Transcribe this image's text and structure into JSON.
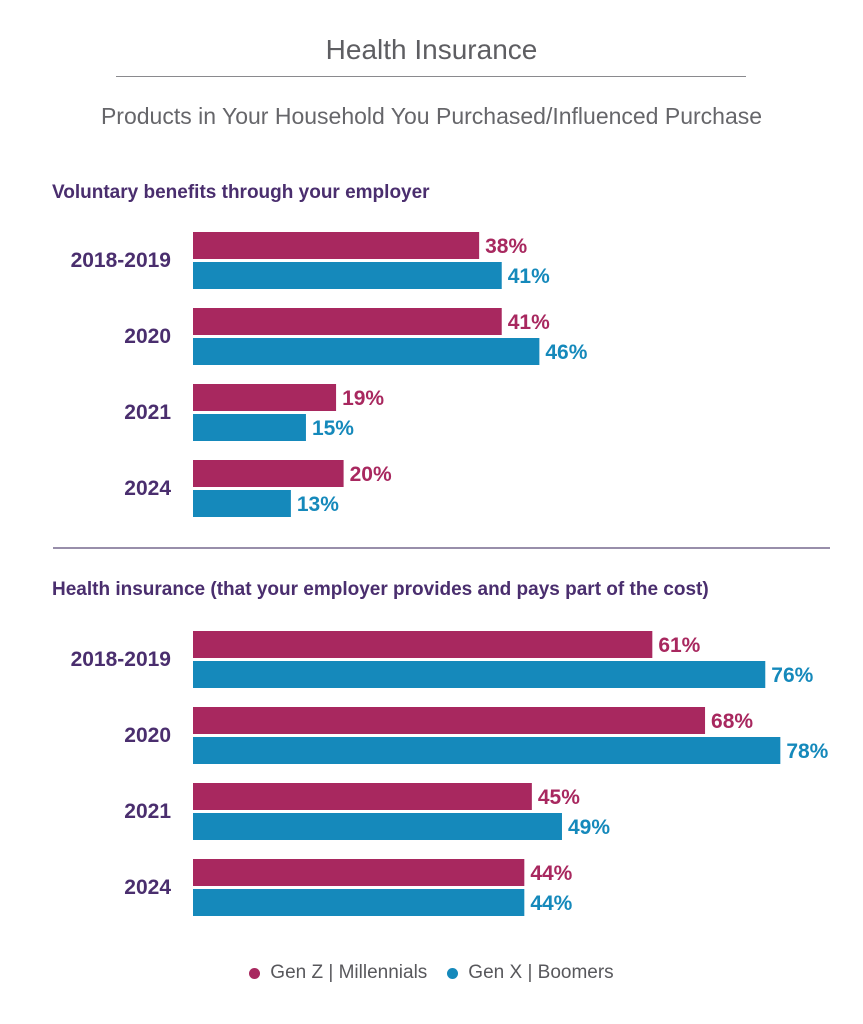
{
  "header": {
    "title": "Health Insurance",
    "subtitle": "Products in Your Household You Purchased/Influenced Purchase"
  },
  "colors": {
    "series1": "#a8285f",
    "series2": "#1589bb",
    "category_label": "#4a2e6e",
    "heading": "#4a2e6e"
  },
  "chart_data": [
    {
      "type": "bar",
      "orientation": "horizontal",
      "title": "Voluntary benefits through your employer",
      "categories": [
        "2018-2019",
        "2020",
        "2021",
        "2024"
      ],
      "series": [
        {
          "name": "Gen Z | Millennials",
          "values": [
            38,
            41,
            19,
            20
          ],
          "labels": [
            "38%",
            "41%",
            "19%",
            "20%"
          ]
        },
        {
          "name": "Gen X | Boomers",
          "values": [
            41,
            46,
            15,
            13
          ],
          "labels": [
            "41%",
            "46%",
            "15%",
            "13%"
          ]
        }
      ],
      "xlim": [
        0,
        100
      ]
    },
    {
      "type": "bar",
      "orientation": "horizontal",
      "title": "Health insurance (that your employer provides and pays part of the cost)",
      "categories": [
        "2018-2019",
        "2020",
        "2021",
        "2024"
      ],
      "series": [
        {
          "name": "Gen Z | Millennials",
          "values": [
            61,
            68,
            45,
            44
          ],
          "labels": [
            "61%",
            "68%",
            "45%",
            "44%"
          ]
        },
        {
          "name": "Gen X | Boomers",
          "values": [
            76,
            78,
            49,
            44
          ],
          "labels": [
            "76%",
            "78%",
            "49%",
            "44%"
          ]
        }
      ],
      "xlim": [
        0,
        100
      ]
    }
  ],
  "legend": {
    "items": [
      {
        "label": "Gen Z  |  Millennials",
        "color": "#a8285f"
      },
      {
        "label": "Gen X  |  Boomers",
        "color": "#1589bb"
      }
    ]
  }
}
